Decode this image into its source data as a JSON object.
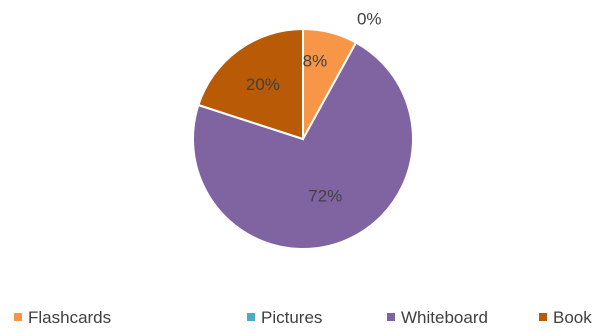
{
  "chart_data": {
    "type": "pie",
    "title": "",
    "categories": [
      "Flashcards",
      "Pictures",
      "Whiteboard",
      "Book"
    ],
    "values": [
      8,
      0,
      72,
      20
    ],
    "data_labels": [
      "8%",
      "0%",
      "72%",
      "20%"
    ],
    "colors": [
      "#F79646",
      "#4BACC6",
      "#8064A2",
      "#B95A06"
    ],
    "legend_position": "bottom",
    "start_angle": "12 o'clock",
    "direction": "clockwise"
  }
}
